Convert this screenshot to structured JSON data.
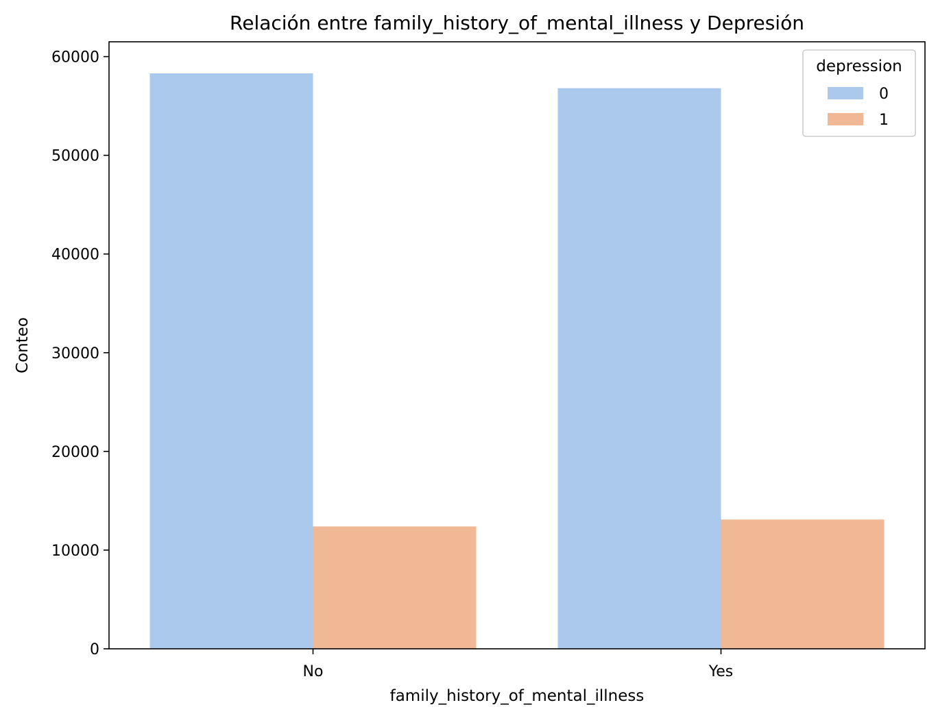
{
  "chart_data": {
    "type": "bar",
    "title": "Relación entre family_history_of_mental_illness y Depresión",
    "xlabel": "family_history_of_mental_illness",
    "ylabel": "Conteo",
    "categories": [
      "No",
      "Yes"
    ],
    "series": [
      {
        "name": "0",
        "color": "#abc9ed",
        "values": [
          58300,
          56800
        ]
      },
      {
        "name": "1",
        "color": "#f0b895",
        "values": [
          12400,
          13100
        ]
      }
    ],
    "ylim": [
      0,
      61500
    ],
    "yticks": [
      0,
      10000,
      20000,
      30000,
      40000,
      50000,
      60000
    ],
    "legend": {
      "title": "depression",
      "position": "top-right"
    },
    "grid": false
  }
}
